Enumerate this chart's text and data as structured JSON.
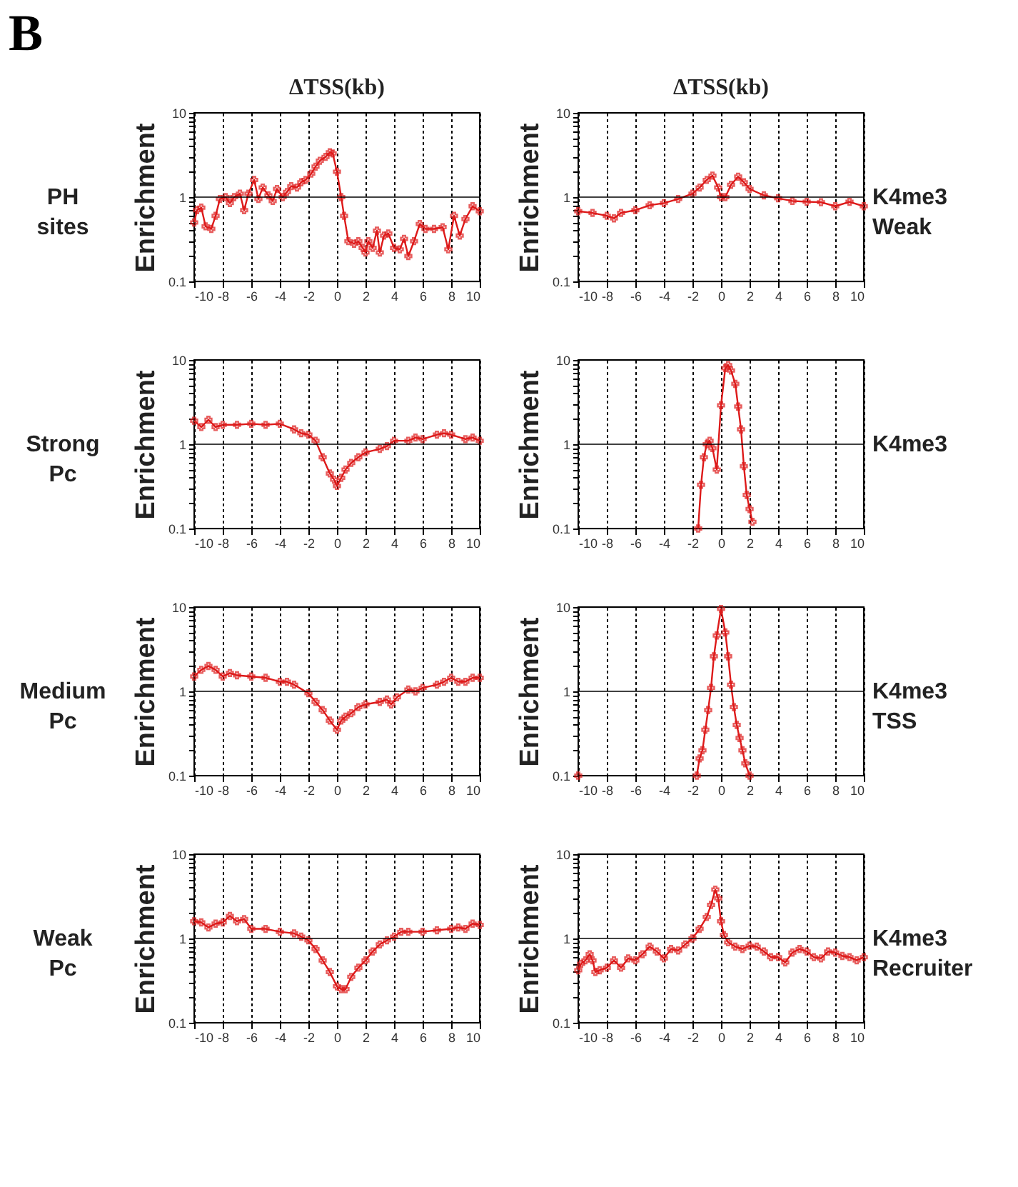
{
  "chart_data": [
    {
      "type": "line",
      "title": "ΔTSS(kb)",
      "ylabel": "Enrichment",
      "annotations": [
        "B",
        "PH sites"
      ],
      "log": "y",
      "grid": "x",
      "marker": "cross",
      "line_style": "solid",
      "xlim": [
        -10,
        10
      ],
      "xticks": [
        -10,
        -8,
        -6,
        -4,
        -2,
        0,
        2,
        4,
        6,
        8,
        10
      ],
      "ylim": [
        0.1,
        10
      ],
      "yticks": [
        0.1,
        {
          "value": 0.2,
          "label": null
        },
        {
          "value": 0.3,
          "label": null
        },
        {
          "value": 0.4,
          "label": null
        },
        {
          "value": 0.5,
          "label": null
        },
        {
          "value": 0.6,
          "label": null
        },
        {
          "value": 0.7,
          "label": null
        },
        {
          "value": 0.8,
          "label": null
        },
        {
          "value": 0.9,
          "label": null
        },
        1,
        {
          "value": 2,
          "label": null
        },
        {
          "value": 3,
          "label": null
        },
        {
          "value": 4,
          "label": null
        },
        {
          "value": 5,
          "label": null
        },
        {
          "value": 6,
          "label": null
        },
        {
          "value": 7,
          "label": null
        },
        {
          "value": 8,
          "label": null
        },
        {
          "value": 9,
          "label": null
        },
        10
      ],
      "ref_lines": [
        {
          "axis": "y",
          "value": 1,
          "color": "#000000"
        }
      ],
      "series": [
        {
          "color": "#dd1a1a",
          "x": [
            -10,
            -9.8,
            -9.5,
            -9.2,
            -8.8,
            -8.5,
            -8.2,
            -7.8,
            -7.5,
            -7.2,
            -6.8,
            -6.5,
            -6.2,
            -5.8,
            -5.5,
            -5.2,
            -4.8,
            -4.5,
            -4.2,
            -3.8,
            -3.5,
            -3.2,
            -2.8,
            -2.5,
            -2.2,
            -1.8,
            -1.5,
            -1.2,
            -0.8,
            -0.5,
            -0.3,
            0,
            0.3,
            0.5,
            0.8,
            1.2,
            1.5,
            1.8,
            2.0,
            2.2,
            2.5,
            2.8,
            3.0,
            3.3,
            3.6,
            4.0,
            4.4,
            4.7,
            5.0,
            5.4,
            5.8,
            6.2,
            6.8,
            7.4,
            7.8,
            8.2,
            8.6,
            9.0,
            9.5,
            10
          ],
          "values": [
            0.5,
            0.7,
            0.75,
            0.45,
            0.42,
            0.6,
            0.95,
            1.0,
            0.85,
            1.0,
            1.1,
            0.7,
            1.1,
            1.6,
            0.95,
            1.3,
            1.05,
            0.9,
            1.25,
            1.0,
            1.15,
            1.35,
            1.3,
            1.5,
            1.6,
            1.9,
            2.3,
            2.7,
            3.0,
            3.4,
            3.3,
            2.0,
            1.0,
            0.6,
            0.3,
            0.28,
            0.3,
            0.25,
            0.22,
            0.3,
            0.25,
            0.4,
            0.22,
            0.35,
            0.37,
            0.25,
            0.24,
            0.32,
            0.2,
            0.3,
            0.48,
            0.42,
            0.42,
            0.44,
            0.24,
            0.6,
            0.35,
            0.55,
            0.78,
            0.68
          ]
        }
      ]
    },
    {
      "type": "line",
      "title": "ΔTSS(kb)",
      "ylabel": "Enrichment",
      "annotations": [
        "K4me3 Weak"
      ],
      "log": "y",
      "grid": "x",
      "marker": "cross",
      "line_style": "solid",
      "xlim": [
        -10,
        10
      ],
      "xticks": [
        -10,
        -8,
        -6,
        -4,
        -2,
        0,
        2,
        4,
        6,
        8,
        10
      ],
      "ylim": [
        0.1,
        10
      ],
      "yticks": [
        0.1,
        {
          "value": 0.2,
          "label": null
        },
        {
          "value": 0.3,
          "label": null
        },
        {
          "value": 0.4,
          "label": null
        },
        {
          "value": 0.5,
          "label": null
        },
        {
          "value": 0.6,
          "label": null
        },
        {
          "value": 0.7,
          "label": null
        },
        {
          "value": 0.8,
          "label": null
        },
        {
          "value": 0.9,
          "label": null
        },
        1,
        {
          "value": 2,
          "label": null
        },
        {
          "value": 3,
          "label": null
        },
        {
          "value": 4,
          "label": null
        },
        {
          "value": 5,
          "label": null
        },
        {
          "value": 6,
          "label": null
        },
        {
          "value": 7,
          "label": null
        },
        {
          "value": 8,
          "label": null
        },
        {
          "value": 9,
          "label": null
        },
        10
      ],
      "ref_lines": [
        {
          "axis": "y",
          "value": 1,
          "color": "#000000"
        }
      ],
      "series": [
        {
          "color": "#dd1a1a",
          "x": [
            -10,
            -9,
            -8,
            -7.5,
            -7,
            -6,
            -5,
            -4,
            -3,
            -2,
            -1.5,
            -1,
            -0.6,
            -0.2,
            0,
            0.3,
            0.7,
            1.2,
            1.6,
            2,
            3,
            4,
            5,
            6,
            7,
            8,
            9,
            10
          ],
          "values": [
            0.68,
            0.65,
            0.6,
            0.56,
            0.65,
            0.7,
            0.8,
            0.85,
            0.95,
            1.1,
            1.3,
            1.6,
            1.8,
            1.3,
            1.0,
            1.0,
            1.4,
            1.75,
            1.5,
            1.25,
            1.05,
            0.97,
            0.9,
            0.88,
            0.87,
            0.78,
            0.88,
            0.78
          ]
        }
      ]
    },
    {
      "type": "line",
      "ylabel": "Enrichment",
      "annotations": [
        "Strong Pc"
      ],
      "log": "y",
      "grid": "x",
      "marker": "cross",
      "line_style": "solid",
      "xlim": [
        -10,
        10
      ],
      "xticks": [
        -10,
        -8,
        -6,
        -4,
        -2,
        0,
        2,
        4,
        6,
        8,
        10
      ],
      "ylim": [
        0.1,
        10
      ],
      "yticks": [
        0.1,
        {
          "value": 0.2,
          "label": null
        },
        {
          "value": 0.3,
          "label": null
        },
        {
          "value": 0.4,
          "label": null
        },
        {
          "value": 0.5,
          "label": null
        },
        {
          "value": 0.6,
          "label": null
        },
        {
          "value": 0.7,
          "label": null
        },
        {
          "value": 0.8,
          "label": null
        },
        {
          "value": 0.9,
          "label": null
        },
        1,
        {
          "value": 2,
          "label": null
        },
        {
          "value": 3,
          "label": null
        },
        {
          "value": 4,
          "label": null
        },
        {
          "value": 5,
          "label": null
        },
        {
          "value": 6,
          "label": null
        },
        {
          "value": 7,
          "label": null
        },
        {
          "value": 8,
          "label": null
        },
        {
          "value": 9,
          "label": null
        },
        10
      ],
      "ref_lines": [
        {
          "axis": "y",
          "value": 1,
          "color": "#000000"
        }
      ],
      "series": [
        {
          "color": "#dd1a1a",
          "x": [
            -10,
            -9.5,
            -9,
            -8.5,
            -8,
            -7,
            -6,
            -5,
            -4,
            -3,
            -2.5,
            -2,
            -1.5,
            -1,
            -0.5,
            -0.2,
            0,
            0.3,
            0.6,
            1,
            1.5,
            2,
            3,
            3.5,
            4,
            5,
            5.5,
            6,
            7,
            7.5,
            8,
            9,
            9.5,
            10
          ],
          "values": [
            1.9,
            1.6,
            1.95,
            1.6,
            1.7,
            1.7,
            1.75,
            1.7,
            1.75,
            1.5,
            1.35,
            1.3,
            1.1,
            0.7,
            0.45,
            0.38,
            0.32,
            0.4,
            0.5,
            0.6,
            0.7,
            0.8,
            0.88,
            0.95,
            1.1,
            1.1,
            1.2,
            1.15,
            1.3,
            1.35,
            1.3,
            1.15,
            1.2,
            1.1
          ]
        }
      ]
    },
    {
      "type": "line",
      "ylabel": "Enrichment",
      "annotations": [
        "K4me3"
      ],
      "log": "y",
      "grid": "x",
      "marker": "cross",
      "line_style": "solid",
      "xlim": [
        -10,
        10
      ],
      "xticks": [
        -10,
        -8,
        -6,
        -4,
        -2,
        0,
        2,
        4,
        6,
        8,
        10
      ],
      "ylim": [
        0.1,
        10
      ],
      "yticks": [
        0.1,
        {
          "value": 0.2,
          "label": null
        },
        {
          "value": 0.3,
          "label": null
        },
        {
          "value": 0.4,
          "label": null
        },
        {
          "value": 0.5,
          "label": null
        },
        {
          "value": 0.6,
          "label": null
        },
        {
          "value": 0.7,
          "label": null
        },
        {
          "value": 0.8,
          "label": null
        },
        {
          "value": 0.9,
          "label": null
        },
        1,
        {
          "value": 2,
          "label": null
        },
        {
          "value": 3,
          "label": null
        },
        {
          "value": 4,
          "label": null
        },
        {
          "value": 5,
          "label": null
        },
        {
          "value": 6,
          "label": null
        },
        {
          "value": 7,
          "label": null
        },
        {
          "value": 8,
          "label": null
        },
        {
          "value": 9,
          "label": null
        },
        10
      ],
      "ref_lines": [
        {
          "axis": "y",
          "value": 1,
          "color": "#000000"
        }
      ],
      "series": [
        {
          "color": "#dd1a1a",
          "x": [
            -1.6,
            -1.4,
            -1.2,
            -1.0,
            -0.8,
            -0.6,
            -0.3,
            0,
            0.3,
            0.5,
            0.7,
            1.0,
            1.2,
            1.4,
            1.6,
            1.8,
            2.0,
            2.2
          ],
          "values": [
            0.1,
            0.33,
            0.7,
            1.0,
            1.1,
            0.9,
            0.5,
            2.9,
            8.0,
            8.7,
            7.5,
            5.2,
            2.8,
            1.5,
            0.55,
            0.25,
            0.17,
            0.12
          ]
        }
      ]
    },
    {
      "type": "line",
      "ylabel": "Enrichment",
      "annotations": [
        "Medium Pc"
      ],
      "log": "y",
      "grid": "x",
      "marker": "cross",
      "line_style": "solid",
      "xlim": [
        -10,
        10
      ],
      "xticks": [
        -10,
        -8,
        -6,
        -4,
        -2,
        0,
        2,
        4,
        6,
        8,
        10
      ],
      "ylim": [
        0.1,
        10
      ],
      "yticks": [
        0.1,
        {
          "value": 0.2,
          "label": null
        },
        {
          "value": 0.3,
          "label": null
        },
        {
          "value": 0.4,
          "label": null
        },
        {
          "value": 0.5,
          "label": null
        },
        {
          "value": 0.6,
          "label": null
        },
        {
          "value": 0.7,
          "label": null
        },
        {
          "value": 0.8,
          "label": null
        },
        {
          "value": 0.9,
          "label": null
        },
        1,
        {
          "value": 2,
          "label": null
        },
        {
          "value": 3,
          "label": null
        },
        {
          "value": 4,
          "label": null
        },
        {
          "value": 5,
          "label": null
        },
        {
          "value": 6,
          "label": null
        },
        {
          "value": 7,
          "label": null
        },
        {
          "value": 8,
          "label": null
        },
        {
          "value": 9,
          "label": null
        },
        10
      ],
      "ref_lines": [
        {
          "axis": "y",
          "value": 1,
          "color": "#000000"
        }
      ],
      "series": [
        {
          "color": "#dd1a1a",
          "x": [
            -10,
            -9.5,
            -9,
            -8.5,
            -8,
            -7.5,
            -7,
            -6,
            -5,
            -4,
            -3.5,
            -3,
            -2,
            -1.5,
            -1,
            -0.5,
            0,
            0.3,
            0.6,
            1,
            1.5,
            2,
            3,
            3.5,
            3.8,
            4.2,
            5,
            5.5,
            6,
            7,
            7.5,
            8,
            8.5,
            9,
            9.5,
            10
          ],
          "values": [
            1.5,
            1.8,
            2.0,
            1.8,
            1.5,
            1.65,
            1.55,
            1.5,
            1.45,
            1.3,
            1.3,
            1.2,
            0.95,
            0.75,
            0.6,
            0.45,
            0.35,
            0.45,
            0.5,
            0.55,
            0.65,
            0.7,
            0.75,
            0.8,
            0.7,
            0.85,
            1.05,
            1.0,
            1.1,
            1.2,
            1.3,
            1.45,
            1.3,
            1.3,
            1.45,
            1.45
          ]
        }
      ]
    },
    {
      "type": "line",
      "ylabel": "Enrichment",
      "annotations": [
        "K4me3 TSS"
      ],
      "log": "y",
      "grid": "x",
      "marker": "cross",
      "line_style": "solid",
      "xlim": [
        -10,
        10
      ],
      "xticks": [
        -10,
        -8,
        -6,
        -4,
        -2,
        0,
        2,
        4,
        6,
        8,
        10
      ],
      "ylim": [
        0.1,
        10
      ],
      "yticks": [
        0.1,
        {
          "value": 0.2,
          "label": null
        },
        {
          "value": 0.3,
          "label": null
        },
        {
          "value": 0.4,
          "label": null
        },
        {
          "value": 0.5,
          "label": null
        },
        {
          "value": 0.6,
          "label": null
        },
        {
          "value": 0.7,
          "label": null
        },
        {
          "value": 0.8,
          "label": null
        },
        {
          "value": 0.9,
          "label": null
        },
        1,
        {
          "value": 2,
          "label": null
        },
        {
          "value": 3,
          "label": null
        },
        {
          "value": 4,
          "label": null
        },
        {
          "value": 5,
          "label": null
        },
        {
          "value": 6,
          "label": null
        },
        {
          "value": 7,
          "label": null
        },
        {
          "value": 8,
          "label": null
        },
        {
          "value": 9,
          "label": null
        },
        10
      ],
      "ref_lines": [
        {
          "axis": "y",
          "value": 1,
          "color": "#000000"
        }
      ],
      "series": [
        {
          "color": "#dd1a1a",
          "x": [
            -10,
            -6,
            -1.7,
            -1.5,
            -1.3,
            -1.1,
            -0.9,
            -0.7,
            -0.5,
            -0.3,
            0,
            0.3,
            0.5,
            0.7,
            0.9,
            1.1,
            1.3,
            1.5,
            1.7,
            2.0
          ],
          "values": [
            0.1,
            null,
            0.1,
            0.16,
            0.2,
            0.35,
            0.6,
            1.1,
            2.6,
            4.6,
            9.5,
            5.0,
            2.6,
            1.2,
            0.65,
            0.4,
            0.28,
            0.2,
            0.14,
            0.1
          ]
        }
      ]
    },
    {
      "type": "line",
      "ylabel": "Enrichment",
      "annotations": [
        "Weak Pc"
      ],
      "log": "y",
      "grid": "x",
      "marker": "cross",
      "line_style": "solid",
      "xlim": [
        -10,
        10
      ],
      "xticks": [
        -10,
        -8,
        -6,
        -4,
        -2,
        0,
        2,
        4,
        6,
        8,
        10
      ],
      "ylim": [
        0.1,
        10
      ],
      "yticks": [
        0.1,
        {
          "value": 0.2,
          "label": null
        },
        {
          "value": 0.3,
          "label": null
        },
        {
          "value": 0.4,
          "label": null
        },
        {
          "value": 0.5,
          "label": null
        },
        {
          "value": 0.6,
          "label": null
        },
        {
          "value": 0.7,
          "label": null
        },
        {
          "value": 0.8,
          "label": null
        },
        {
          "value": 0.9,
          "label": null
        },
        1,
        {
          "value": 2,
          "label": null
        },
        {
          "value": 3,
          "label": null
        },
        {
          "value": 4,
          "label": null
        },
        {
          "value": 5,
          "label": null
        },
        {
          "value": 6,
          "label": null
        },
        {
          "value": 7,
          "label": null
        },
        {
          "value": 8,
          "label": null
        },
        {
          "value": 9,
          "label": null
        },
        10
      ],
      "ref_lines": [
        {
          "axis": "y",
          "value": 1,
          "color": "#000000"
        }
      ],
      "series": [
        {
          "color": "#dd1a1a",
          "x": [
            -10,
            -9.5,
            -9,
            -8.5,
            -8,
            -7.5,
            -7,
            -6.5,
            -6,
            -5,
            -4,
            -3,
            -2.5,
            -2,
            -1.5,
            -1,
            -0.5,
            0,
            0.3,
            0.6,
            1,
            1.5,
            2,
            2.5,
            3,
            3.5,
            4,
            4.5,
            5,
            6,
            7,
            8,
            8.5,
            9,
            9.5,
            10
          ],
          "values": [
            1.6,
            1.55,
            1.35,
            1.5,
            1.55,
            1.85,
            1.6,
            1.7,
            1.3,
            1.3,
            1.2,
            1.15,
            1.05,
            0.95,
            0.75,
            0.55,
            0.4,
            0.27,
            0.25,
            0.25,
            0.35,
            0.45,
            0.55,
            0.7,
            0.85,
            0.95,
            1.05,
            1.2,
            1.2,
            1.2,
            1.25,
            1.3,
            1.35,
            1.3,
            1.5,
            1.45
          ]
        }
      ]
    },
    {
      "type": "line",
      "ylabel": "Enrichment",
      "annotations": [
        "K4me3 Recruiter"
      ],
      "log": "y",
      "grid": "x",
      "marker": "cross",
      "line_style": "solid",
      "xlim": [
        -10,
        10
      ],
      "xticks": [
        -10,
        -8,
        -6,
        -4,
        -2,
        0,
        2,
        4,
        6,
        8,
        10
      ],
      "ylim": [
        0.1,
        10
      ],
      "yticks": [
        0.1,
        {
          "value": 0.2,
          "label": null
        },
        {
          "value": 0.3,
          "label": null
        },
        {
          "value": 0.4,
          "label": null
        },
        {
          "value": 0.5,
          "label": null
        },
        {
          "value": 0.6,
          "label": null
        },
        {
          "value": 0.7,
          "label": null
        },
        {
          "value": 0.8,
          "label": null
        },
        {
          "value": 0.9,
          "label": null
        },
        1,
        {
          "value": 2,
          "label": null
        },
        {
          "value": 3,
          "label": null
        },
        {
          "value": 4,
          "label": null
        },
        {
          "value": 5,
          "label": null
        },
        {
          "value": 6,
          "label": null
        },
        {
          "value": 7,
          "label": null
        },
        {
          "value": 8,
          "label": null
        },
        {
          "value": 9,
          "label": null
        },
        10
      ],
      "ref_lines": [
        {
          "axis": "y",
          "value": 1,
          "color": "#000000"
        }
      ],
      "series": [
        {
          "color": "#dd1a1a",
          "x": [
            -10,
            -9.8,
            -9.5,
            -9.2,
            -9,
            -8.8,
            -8.5,
            -8,
            -7.5,
            -7,
            -6.5,
            -6,
            -5.5,
            -5,
            -4.5,
            -4,
            -3.5,
            -3,
            -2.5,
            -2,
            -1.5,
            -1,
            -0.7,
            -0.4,
            -0.2,
            0,
            0.2,
            0.5,
            1,
            1.5,
            2,
            2.5,
            3,
            3.5,
            4,
            4.5,
            5,
            5.5,
            6,
            6.5,
            7,
            7.5,
            8,
            8.5,
            9,
            9.5,
            10
          ],
          "values": [
            0.42,
            0.5,
            0.55,
            0.65,
            0.55,
            0.4,
            0.42,
            0.45,
            0.55,
            0.45,
            0.58,
            0.55,
            0.65,
            0.8,
            0.7,
            0.58,
            0.75,
            0.72,
            0.85,
            1.0,
            1.3,
            1.8,
            2.5,
            3.8,
            3.0,
            1.6,
            1.1,
            0.9,
            0.8,
            0.75,
            0.82,
            0.8,
            0.7,
            0.6,
            0.6,
            0.52,
            0.68,
            0.75,
            0.7,
            0.6,
            0.58,
            0.7,
            0.68,
            0.62,
            0.6,
            0.55,
            0.6
          ]
        }
      ]
    }
  ]
}
